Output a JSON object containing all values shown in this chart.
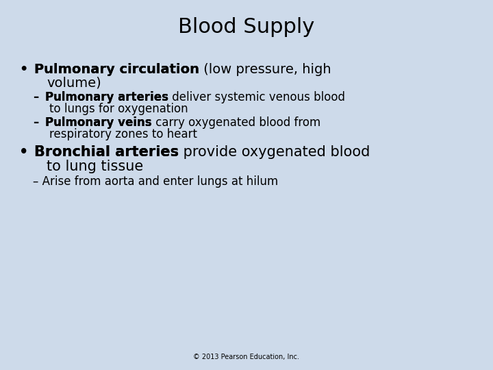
{
  "title": "Blood Supply",
  "title_fontsize": 22,
  "background_color": "#cddaea",
  "text_color": "#000000",
  "footer": "© 2013 Pearson Education, Inc.",
  "footer_fontsize": 7,
  "bullet1_bold": "Pulmonary circulation",
  "bullet1_normal": " (low pressure, high\nvolume)",
  "bullet1_fontsize": 14,
  "sub1_bold": "Pulmonary arteries",
  "sub1_normal": " deliver systemic venous blood\nto lungs for oxygenation",
  "sub1_fontsize": 12,
  "sub2_bold": "Pulmonary veins",
  "sub2_normal": " carry oxygenated blood from\nrespiratory zones to heart",
  "sub2_fontsize": 12,
  "bullet2_bold": "Bronchial arteries",
  "bullet2_normal": " provide oxygenated blood\nto lung tissue",
  "bullet2_fontsize": 15,
  "sub3_normal": "Arise from aorta and enter lungs at hilum",
  "sub3_fontsize": 12
}
